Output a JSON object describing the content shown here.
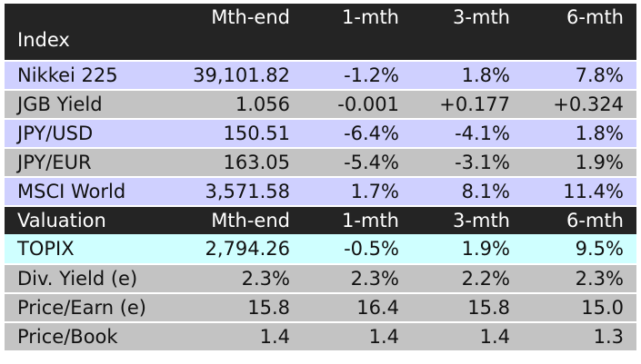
{
  "market": {
    "header": [
      "Index",
      "Mth-end",
      "1-mth",
      "3-mth",
      "6-mth"
    ],
    "rows": [
      {
        "name": "Nikkei 225",
        "mth_end": "39,101.82",
        "m1": "-1.2%",
        "m3": "1.8%",
        "m6": "7.8%"
      },
      {
        "name": "JGB Yield",
        "mth_end": "1.056",
        "m1": "-0.001",
        "m3": "+0.177",
        "m6": "+0.324"
      },
      {
        "name": "JPY/USD",
        "mth_end": "150.51",
        "m1": "-6.4%",
        "m3": "-4.1%",
        "m6": "1.8%"
      },
      {
        "name": "JPY/EUR",
        "mth_end": "163.05",
        "m1": "-5.4%",
        "m3": "-3.1%",
        "m6": "1.9%"
      },
      {
        "name": "MSCI World",
        "mth_end": "3,571.58",
        "m1": "1.7%",
        "m3": "8.1%",
        "m6": "11.4%"
      }
    ]
  },
  "valuation": {
    "header": [
      "Valuation",
      "Mth-end",
      "1-mth",
      "3-mth",
      "6-mth"
    ],
    "rows": [
      {
        "name": "TOPIX",
        "mth_end": "2,794.26",
        "m1": "-0.5%",
        "m3": "1.9%",
        "m6": "9.5%"
      },
      {
        "name": "Div. Yield (e)",
        "mth_end": "2.3%",
        "m1": "2.3%",
        "m3": "2.2%",
        "m6": "2.3%"
      },
      {
        "name": "Price/Earn (e)",
        "mth_end": "15.8",
        "m1": "16.4",
        "m3": "15.8",
        "m6": "15.0"
      },
      {
        "name": "Price/Book",
        "mth_end": "1.4",
        "m1": "1.4",
        "m3": "1.4",
        "m6": "1.3"
      }
    ]
  },
  "colors": {
    "header_bg": "#242424",
    "lavender_row": "#cfd0ff",
    "gray_row": "#c3c3c3",
    "cyan_row": "#cfffff"
  }
}
